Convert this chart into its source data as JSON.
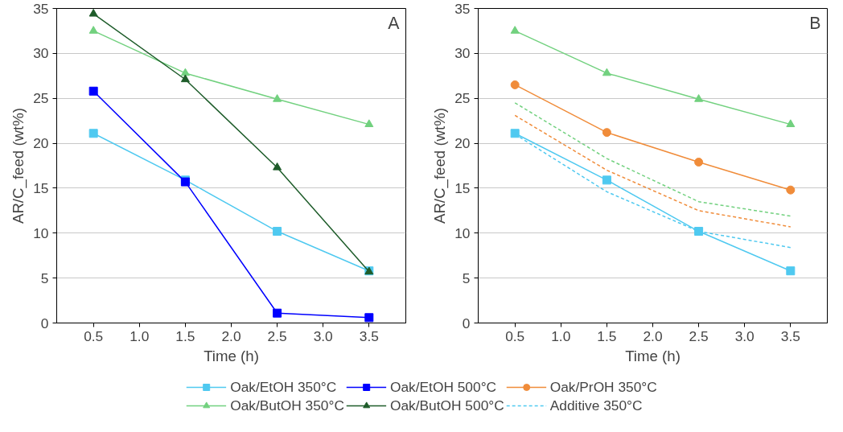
{
  "chart_data": [
    {
      "type": "line",
      "annotations": [
        "A"
      ],
      "xlabel": "Time (h)",
      "ylabel": "AR/C_feed (wt%)",
      "x": [
        0.5,
        1.5,
        2.5,
        3.5
      ],
      "xlim": [
        0.1,
        3.9
      ],
      "xticks": [
        {
          "value": 0.5,
          "label": "0.5"
        },
        {
          "value": 1.0,
          "label": "1.0"
        },
        {
          "value": 1.5,
          "label": "1.5"
        },
        {
          "value": 2.0,
          "label": "2.0"
        },
        {
          "value": 2.5,
          "label": "2.5"
        },
        {
          "value": 3.0,
          "label": "3.0"
        },
        {
          "value": 3.5,
          "label": "3.5"
        }
      ],
      "ylim": [
        0,
        35
      ],
      "yticks": [
        0,
        5,
        10,
        15,
        20,
        25,
        30,
        35
      ],
      "grid": "y",
      "legend": "bottom",
      "line_style": "solid",
      "series": [
        {
          "name": "Oak/EtOH 350°C",
          "color": "#4fc9f0",
          "marker": "square",
          "values": [
            21.1,
            15.9,
            10.2,
            5.8
          ]
        },
        {
          "name": "Oak/ButOH 350°C",
          "color": "#72d17f",
          "marker": "triangle",
          "values": [
            32.5,
            27.8,
            24.9,
            22.1
          ]
        },
        {
          "name": "Oak/EtOH 500°C",
          "color": "#0000ff",
          "marker": "square",
          "values": [
            25.8,
            15.7,
            1.1,
            0.6
          ]
        },
        {
          "name": "Oak/ButOH 500°C",
          "color": "#1e5c2a",
          "marker": "triangle",
          "values": [
            34.4,
            27.1,
            17.3,
            5.7
          ]
        }
      ]
    },
    {
      "type": "line",
      "annotations": [
        "B"
      ],
      "xlabel": "Time (h)",
      "ylabel": "AR/C_feed (wt%)",
      "x": [
        0.5,
        1.5,
        2.5,
        3.5
      ],
      "xlim": [
        0.1,
        3.9
      ],
      "xticks": [
        {
          "value": 0.5,
          "label": "0.5"
        },
        {
          "value": 1.0,
          "label": "1.0"
        },
        {
          "value": 1.5,
          "label": "1.5"
        },
        {
          "value": 2.0,
          "label": "2.0"
        },
        {
          "value": 2.5,
          "label": "2.5"
        },
        {
          "value": 3.0,
          "label": "3.0"
        },
        {
          "value": 3.5,
          "label": "3.5"
        }
      ],
      "ylim": [
        0,
        35
      ],
      "yticks": [
        0,
        5,
        10,
        15,
        20,
        25,
        30,
        35
      ],
      "grid": "y",
      "legend": "bottom",
      "line_style": "solid",
      "series": [
        {
          "color": "#4fc9f0",
          "marker": "square",
          "values": [
            21.1,
            15.9,
            10.2,
            5.8
          ]
        },
        {
          "name": "Oak/PrOH 350°C",
          "color": "#f08c3a",
          "marker": "circle",
          "values": [
            26.5,
            21.2,
            17.9,
            14.8
          ]
        },
        {
          "color": "#72d17f",
          "marker": "triangle",
          "values": [
            32.5,
            27.8,
            24.9,
            22.1
          ]
        },
        {
          "name": "Additive 350°C",
          "color": "#4fc9f0",
          "marker": "none",
          "line_style": "dashed",
          "values": [
            21.0,
            14.6,
            10.2,
            8.4
          ]
        },
        {
          "color": "#f08c3a",
          "marker": "none",
          "line_style": "dashed",
          "values": [
            23.1,
            17.0,
            12.5,
            10.7
          ]
        },
        {
          "color": "#72d17f",
          "marker": "none",
          "line_style": "dashed",
          "values": [
            24.5,
            18.3,
            13.5,
            11.9
          ]
        }
      ]
    }
  ]
}
